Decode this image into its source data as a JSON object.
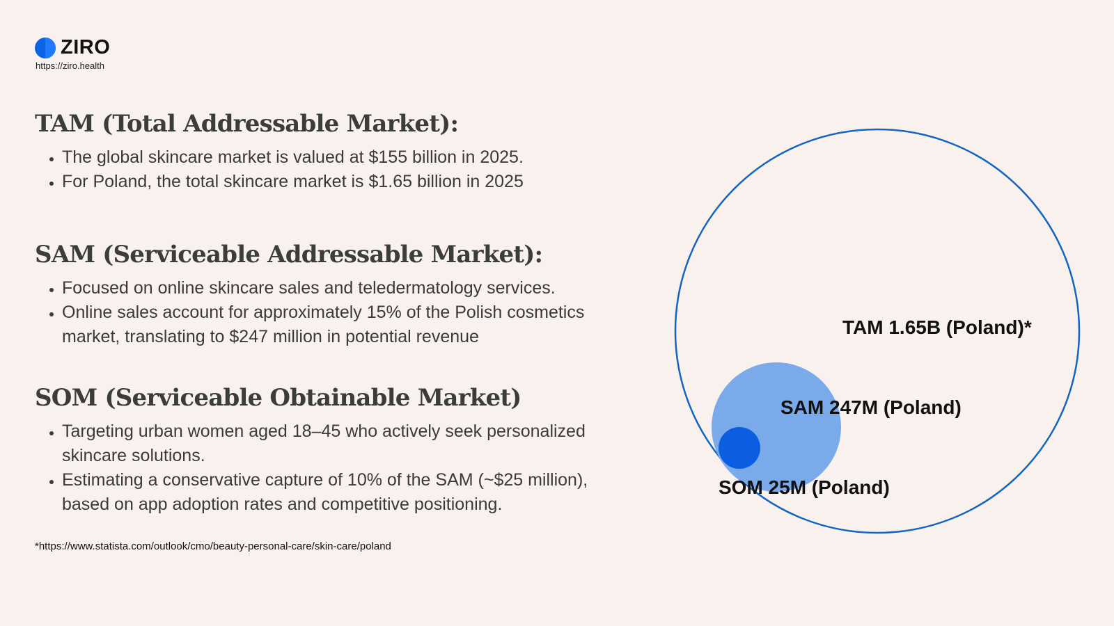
{
  "brand": {
    "name": "ZIRO",
    "url": "https://ziro.health",
    "color": "#0b63e5"
  },
  "sections": {
    "tam": {
      "title": "TAM (Total Addressable Market):",
      "bullets": [
        "The global skincare market is valued at $155 billion in 2025.",
        "For Poland, the total skincare market is $1.65 billion in 2025"
      ]
    },
    "sam": {
      "title": "SAM (Serviceable Addressable Market):",
      "bullets": [
        "Focused on online skincare sales and teledermatology services.",
        "Online sales account for approximately 15% of the Polish cosmetics market, translating to $247 million in potential revenue"
      ]
    },
    "som": {
      "title": "SOM (Serviceable Obtainable Market)",
      "bullets": [
        "Targeting urban women aged 18–45 who actively seek personalized skincare solutions.",
        "Estimating a conservative capture of 10% of the SAM (~$25 million), based on app adoption rates and competitive positioning."
      ]
    }
  },
  "footnote": "*https://www.statista.com/outlook/cmo/beauty-personal-care/skin-care/poland",
  "diagram": {
    "tam_label": "TAM 1.65B (Poland)*",
    "sam_label": "SAM 247M (Poland)",
    "som_label": "SOM 25M (Poland)",
    "tam_stroke": "#1565c0",
    "sam_fill": "#7aaaea",
    "som_fill": "#0b5ee0"
  }
}
